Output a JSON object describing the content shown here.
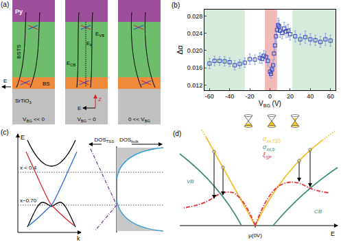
{
  "chart_data": {
    "type": "scatter",
    "panel_label": "(b)",
    "x_label": {
      "base": "V",
      "sub": "BG",
      "tail": " (V)"
    },
    "y_label": "Δα",
    "x": [
      -60,
      -55,
      -50,
      -45,
      -40,
      -35,
      -30,
      -25,
      -20,
      -15,
      -10,
      -8,
      -6,
      -4,
      -2,
      0,
      1,
      2,
      3,
      4,
      5,
      6,
      7,
      8,
      9,
      10,
      12,
      14,
      16,
      18,
      20,
      25,
      30,
      35,
      40,
      45,
      50,
      55,
      60
    ],
    "values": [
      0.017,
      0.0176,
      0.0176,
      0.0175,
      0.0173,
      0.0166,
      0.0169,
      0.0172,
      0.018,
      0.0179,
      0.0183,
      0.0181,
      0.0188,
      0.0185,
      0.0176,
      0.0151,
      0.0146,
      0.0156,
      0.0166,
      0.0193,
      0.0212,
      0.0233,
      0.0248,
      0.0259,
      0.0256,
      0.0246,
      0.0241,
      0.0251,
      0.0244,
      0.0246,
      0.0238,
      0.0233,
      0.0226,
      0.0231,
      0.0226,
      0.0224,
      0.022,
      0.0226,
      0.0223
    ],
    "errors": [
      0.0012,
      0.0011,
      0.001,
      0.0011,
      0.001,
      0.0011,
      0.001,
      0.0011,
      0.0012,
      0.0011,
      0.0012,
      0.0011,
      0.0012,
      0.0013,
      0.0012,
      0.0011,
      0.001,
      0.0011,
      0.0012,
      0.0014,
      0.0015,
      0.0014,
      0.0015,
      0.0016,
      0.0014,
      0.0015,
      0.0014,
      0.0015,
      0.0014,
      0.0015,
      0.0014,
      0.0013,
      0.0012,
      0.0014,
      0.0013,
      0.0012,
      0.0013,
      0.0014,
      0.0013
    ],
    "color": "#2b3fc4",
    "marker": "square-open",
    "xlim": [
      -65,
      65
    ],
    "xticks": [
      -60,
      -40,
      -20,
      0,
      20,
      40,
      60
    ],
    "ylim": [
      0.0108,
      0.0295
    ],
    "yticks": [
      0.012,
      0.016,
      {
        "value": 0.02,
        "label": "0.020"
      },
      0.024,
      0.028
    ],
    "regions": [
      {
        "x0": -65,
        "x1": -25,
        "color": "#d6ebdc"
      },
      {
        "x0": -5,
        "x1": 7,
        "color": "#f3b8b8"
      },
      {
        "x0": 22,
        "x1": 65,
        "color": "#d6ebdc"
      }
    ],
    "grid": false
  },
  "diagrams": {
    "a": {
      "panel_label": "(a)",
      "layers": [
        {
          "label": "Py",
          "color": "#9d4f9b"
        },
        {
          "label": "BSTS",
          "color": "#6dbd6d"
        },
        {
          "label": "BS",
          "color": "#f08a3c"
        },
        {
          "label": {
            "base": "SrTiO",
            "sub": "3"
          },
          "color": "#c0c0c0"
        }
      ],
      "columns": [
        {
          "label": {
            "base": "V",
            "sub": "BG",
            "tail": " << 0"
          }
        },
        {
          "label": {
            "base": "V",
            "sub": "BG",
            "tail": " ~ 0"
          }
        },
        {
          "label": {
            "base": "0 << V",
            "sub": "BG"
          }
        }
      ],
      "band_labels": {
        "valence": {
          "base": "E",
          "sub": "VB"
        },
        "fermi": {
          "base": "E",
          "sub": "F"
        },
        "conduction": {
          "base": "E",
          "sub": "CB"
        }
      },
      "field_label": "E",
      "axis_labels": {
        "z": "Z",
        "e": "E"
      }
    },
    "c": {
      "panel_label": "(c)",
      "e_axis": "E",
      "k_axis": "k",
      "levels": [
        "x < 0.4",
        "x~0.70"
      ],
      "dos_tss": {
        "base": "DOS",
        "sub": "TSS"
      },
      "dos_bulk": {
        "base": "DOS",
        "sub": "bulk"
      }
    },
    "d": {
      "panel_label": "(d)",
      "x_axis": "E",
      "origin": "μ(0V)",
      "curves": [
        {
          "label": {
            "base": "σ",
            "sub": "xx,TSS"
          },
          "color": "#f2bf2f"
        },
        {
          "label": {
            "base": "σ",
            "sub": "xx,b"
          },
          "color": "#3a8c7c"
        },
        {
          "label": {
            "base": "ξ",
            "sub": "SP"
          },
          "color": "#e3323c"
        }
      ],
      "band_labels": [
        "VB",
        "CB"
      ]
    }
  }
}
